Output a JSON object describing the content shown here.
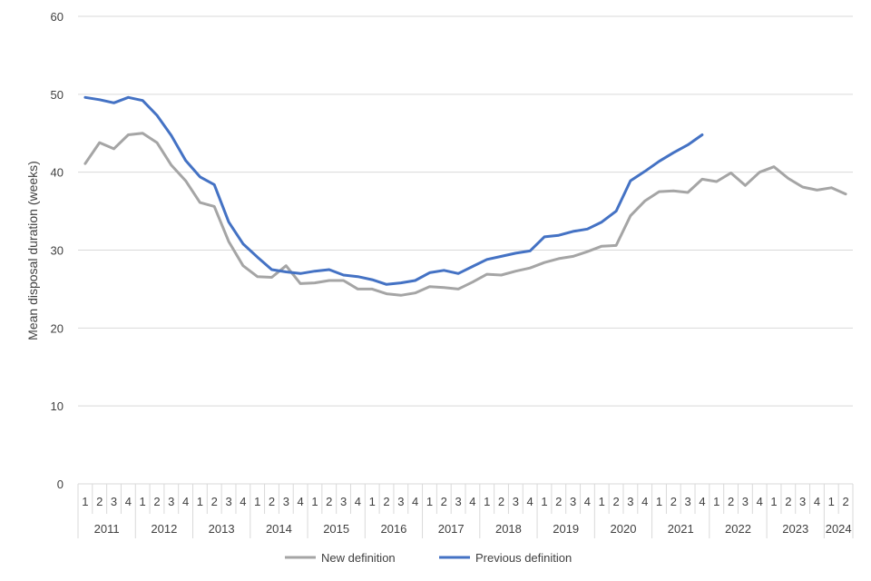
{
  "chart_data": {
    "type": "line",
    "ylabel": "Mean disposal duration (weeks)",
    "ylim": [
      0,
      60
    ],
    "yticks": [
      "0",
      "10",
      "20",
      "30",
      "40",
      "50",
      "60"
    ],
    "grid": true,
    "legend_position": "bottom",
    "years": [
      "2011",
      "2012",
      "2013",
      "2014",
      "2015",
      "2016",
      "2017",
      "2018",
      "2019",
      "2020",
      "2021",
      "2022",
      "2023",
      "2024"
    ],
    "quarters_per_year": [
      4,
      4,
      4,
      4,
      4,
      4,
      4,
      4,
      4,
      4,
      4,
      4,
      4,
      2
    ],
    "quarter_labels": [
      "1",
      "2",
      "3",
      "4"
    ],
    "series": [
      {
        "name": "New definition",
        "color": "#a5a5a5",
        "values": [
          41.1,
          43.8,
          43.0,
          44.8,
          45.0,
          43.8,
          40.9,
          38.9,
          36.1,
          35.6,
          31.1,
          28.0,
          26.6,
          26.5,
          28.0,
          25.7,
          25.8,
          26.1,
          26.1,
          25.0,
          25.0,
          24.4,
          24.2,
          24.5,
          25.3,
          25.2,
          25.0,
          25.9,
          26.9,
          26.8,
          27.3,
          27.7,
          28.4,
          28.9,
          29.2,
          29.8,
          30.5,
          30.6,
          34.4,
          36.3,
          37.5,
          37.6,
          37.4,
          39.1,
          38.8,
          39.9,
          38.3,
          40.0,
          40.7,
          39.2,
          38.1,
          37.7,
          38.0,
          37.2
        ]
      },
      {
        "name": "Previous definition",
        "color": "#4472c4",
        "values": [
          49.6,
          49.3,
          48.9,
          49.6,
          49.2,
          47.3,
          44.7,
          41.5,
          39.4,
          38.4,
          33.6,
          30.8,
          29.1,
          27.5,
          27.2,
          27.0,
          27.3,
          27.5,
          26.8,
          26.6,
          26.2,
          25.6,
          25.8,
          26.1,
          27.1,
          27.4,
          27.0,
          27.9,
          28.8,
          29.2,
          29.6,
          29.9,
          31.7,
          31.9,
          32.4,
          32.7,
          33.6,
          35.0,
          38.9,
          40.1,
          41.4,
          42.5,
          43.5,
          44.8
        ]
      }
    ]
  }
}
